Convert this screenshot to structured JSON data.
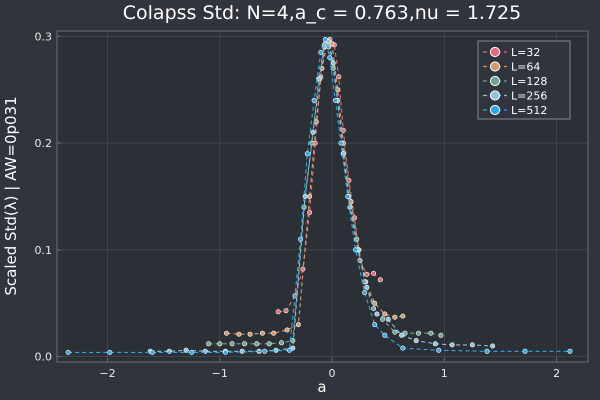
{
  "chart_data": {
    "type": "line",
    "title": "Colapss Std: N=4,a_c = 0.763,nu = 1.725",
    "xlabel": "a",
    "ylabel": "Scaled Std(λ) | AW=0p031",
    "xlim": [
      -2.45,
      2.28
    ],
    "ylim": [
      -0.005,
      0.305
    ],
    "x_ticks": [
      -2,
      -1,
      0,
      1,
      2
    ],
    "x_tick_labels": [
      "−2",
      "−1",
      "0",
      "1",
      "2"
    ],
    "y_ticks": [
      0.0,
      0.1,
      0.2,
      0.3
    ],
    "y_tick_labels": [
      "0.0",
      "0.1",
      "0.2",
      "0.3"
    ],
    "grid": true,
    "legend_position": "top-right",
    "colors": {
      "background": "#30343c",
      "plot_area": "#2b2f36",
      "grid": "#464b54",
      "frame": "#6a6f78"
    },
    "series": [
      {
        "name": "L=32",
        "color": "#e26a7c",
        "points": [
          [
            -0.48,
            0.042
          ],
          [
            -0.41,
            0.043
          ],
          [
            -0.33,
            0.057
          ],
          [
            -0.26,
            0.082
          ],
          [
            -0.2,
            0.135
          ],
          [
            -0.15,
            0.2
          ],
          [
            -0.1,
            0.262
          ],
          [
            -0.06,
            0.293
          ],
          [
            -0.02,
            0.297
          ],
          [
            0.02,
            0.292
          ],
          [
            0.06,
            0.262
          ],
          [
            0.1,
            0.212
          ],
          [
            0.15,
            0.165
          ],
          [
            0.2,
            0.13
          ],
          [
            0.25,
            0.09
          ],
          [
            0.31,
            0.077
          ],
          [
            0.37,
            0.078
          ],
          [
            0.43,
            0.072
          ]
        ]
      },
      {
        "name": "L=64",
        "color": "#d39a72",
        "points": [
          [
            -0.94,
            0.022
          ],
          [
            -0.83,
            0.021
          ],
          [
            -0.73,
            0.021
          ],
          [
            -0.62,
            0.022
          ],
          [
            -0.52,
            0.022
          ],
          [
            -0.4,
            0.025
          ],
          [
            -0.3,
            0.03
          ],
          [
            -0.2,
            0.15
          ],
          [
            -0.14,
            0.22
          ],
          [
            -0.09,
            0.27
          ],
          [
            -0.04,
            0.296
          ],
          [
            0.0,
            0.293
          ],
          [
            0.05,
            0.25
          ],
          [
            0.1,
            0.2
          ],
          [
            0.17,
            0.145
          ],
          [
            0.24,
            0.1
          ],
          [
            0.3,
            0.07
          ],
          [
            0.38,
            0.05
          ],
          [
            0.47,
            0.04
          ],
          [
            0.56,
            0.037
          ],
          [
            0.63,
            0.038
          ]
        ]
      },
      {
        "name": "L=128",
        "color": "#6fa590",
        "points": [
          [
            -1.1,
            0.012
          ],
          [
            -1.0,
            0.012
          ],
          [
            -0.89,
            0.012
          ],
          [
            -0.78,
            0.012
          ],
          [
            -0.67,
            0.012
          ],
          [
            -0.56,
            0.012
          ],
          [
            -0.45,
            0.013
          ],
          [
            -0.35,
            0.015
          ],
          [
            -0.25,
            0.14
          ],
          [
            -0.18,
            0.2
          ],
          [
            -0.12,
            0.26
          ],
          [
            -0.07,
            0.292
          ],
          [
            -0.03,
            0.29
          ],
          [
            0.01,
            0.27
          ],
          [
            0.05,
            0.24
          ],
          [
            0.1,
            0.19
          ],
          [
            0.15,
            0.15
          ],
          [
            0.22,
            0.11
          ],
          [
            0.29,
            0.07
          ],
          [
            0.37,
            0.045
          ],
          [
            0.45,
            0.035
          ],
          [
            0.56,
            0.023
          ],
          [
            0.65,
            0.022
          ],
          [
            0.77,
            0.022
          ],
          [
            0.88,
            0.022
          ],
          [
            0.97,
            0.02
          ]
        ]
      },
      {
        "name": "L=256",
        "color": "#8cc5dc",
        "points": [
          [
            -1.62,
            0.005
          ],
          [
            -1.45,
            0.005
          ],
          [
            -1.3,
            0.006
          ],
          [
            -1.13,
            0.005
          ],
          [
            -0.95,
            0.005
          ],
          [
            -0.8,
            0.005
          ],
          [
            -0.65,
            0.005
          ],
          [
            -0.5,
            0.006
          ],
          [
            -0.35,
            0.008
          ],
          [
            -0.24,
            0.15
          ],
          [
            -0.17,
            0.21
          ],
          [
            -0.11,
            0.26
          ],
          [
            -0.07,
            0.29
          ],
          [
            -0.03,
            0.295
          ],
          [
            0.01,
            0.275
          ],
          [
            0.05,
            0.24
          ],
          [
            0.1,
            0.19
          ],
          [
            0.16,
            0.14
          ],
          [
            0.23,
            0.1
          ],
          [
            0.31,
            0.065
          ],
          [
            0.4,
            0.04
          ],
          [
            0.5,
            0.035
          ],
          [
            0.62,
            0.02
          ],
          [
            0.75,
            0.015
          ],
          [
            0.92,
            0.012
          ],
          [
            1.07,
            0.011
          ],
          [
            1.25,
            0.011
          ],
          [
            1.43,
            0.01
          ]
        ]
      },
      {
        "name": "L=512",
        "color": "#2ea8e8",
        "points": [
          [
            -2.35,
            0.004
          ],
          [
            -1.98,
            0.004
          ],
          [
            -1.6,
            0.004
          ],
          [
            -1.25,
            0.004
          ],
          [
            -0.95,
            0.004
          ],
          [
            -0.6,
            0.005
          ],
          [
            -0.38,
            0.006
          ],
          [
            -0.28,
            0.11
          ],
          [
            -0.22,
            0.19
          ],
          [
            -0.16,
            0.24
          ],
          [
            -0.1,
            0.285
          ],
          [
            -0.06,
            0.297
          ],
          [
            -0.02,
            0.28
          ],
          [
            0.03,
            0.24
          ],
          [
            0.08,
            0.2
          ],
          [
            0.14,
            0.15
          ],
          [
            0.21,
            0.1
          ],
          [
            0.29,
            0.06
          ],
          [
            0.38,
            0.03
          ],
          [
            0.47,
            0.02
          ],
          [
            0.63,
            0.008
          ],
          [
            0.95,
            0.006
          ],
          [
            1.38,
            0.005
          ],
          [
            1.72,
            0.005
          ],
          [
            2.12,
            0.005
          ]
        ]
      }
    ]
  }
}
